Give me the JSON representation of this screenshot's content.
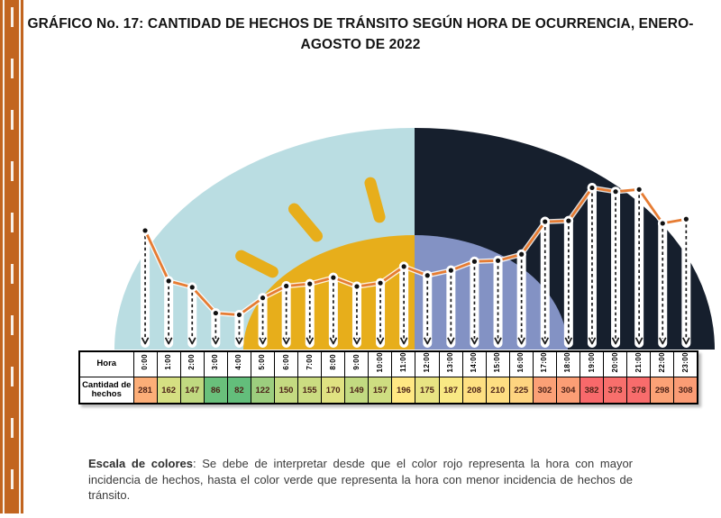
{
  "chart_data": {
    "type": "line",
    "title": "GRÁFICO No. 17: CANTIDAD DE HECHOS DE TRÁNSITO SEGÚN HORA DE OCURRENCIA, ENERO-AGOSTO DE 2022",
    "categories": [
      "0:00",
      "1:00",
      "2:00",
      "3:00",
      "4:00",
      "5:00",
      "6:00",
      "7:00",
      "8:00",
      "9:00",
      "10:00",
      "11:00",
      "12:00",
      "13:00",
      "14:00",
      "15:00",
      "16:00",
      "17:00",
      "18:00",
      "19:00",
      "20:00",
      "21:00",
      "22:00",
      "23:00"
    ],
    "values": [
      281,
      162,
      147,
      86,
      82,
      122,
      150,
      155,
      170,
      149,
      157,
      196,
      175,
      187,
      208,
      210,
      225,
      302,
      304,
      382,
      373,
      378,
      298,
      308
    ],
    "series_name": "Cantidad de hechos",
    "xlabel": "Hora",
    "ylim": [
      0,
      400
    ],
    "grid": false,
    "legend": "none",
    "line_color": "#e67c33",
    "cell_colors": [
      "#FCAE78",
      "#D5DF82",
      "#C0D980",
      "#69C07B",
      "#63BE7B",
      "#9CCE7E",
      "#C4DA81",
      "#CBDC81",
      "#E0E282",
      "#C2DA81",
      "#CEDD81",
      "#FFE883",
      "#E8E483",
      "#F9E984",
      "#FEE082",
      "#FEDE82",
      "#FED480",
      "#FBA076",
      "#FB9E75",
      "#F8696B",
      "#F86F6C",
      "#F86C6C",
      "#FBA276",
      "#FB9C75"
    ],
    "color_scale": {
      "min_color": "#63BE7B",
      "mid_color": "#FFEB84",
      "max_color": "#F8696B"
    },
    "background": {
      "day_sky": "#badde2",
      "night_sky": "#161f2d",
      "sun": "#e7ae1b",
      "moon": "#8392c4"
    }
  },
  "table": {
    "hora_label": "Hora",
    "cantidad_label": "Cantidad de hechos"
  },
  "caption": {
    "bold": "Escala de colores",
    "text": ": Se debe de interpretar desde que el color rojo representa la hora con mayor incidencia de hechos, hasta el color verde que representa la hora con menor incidencia de hechos de tránsito."
  }
}
